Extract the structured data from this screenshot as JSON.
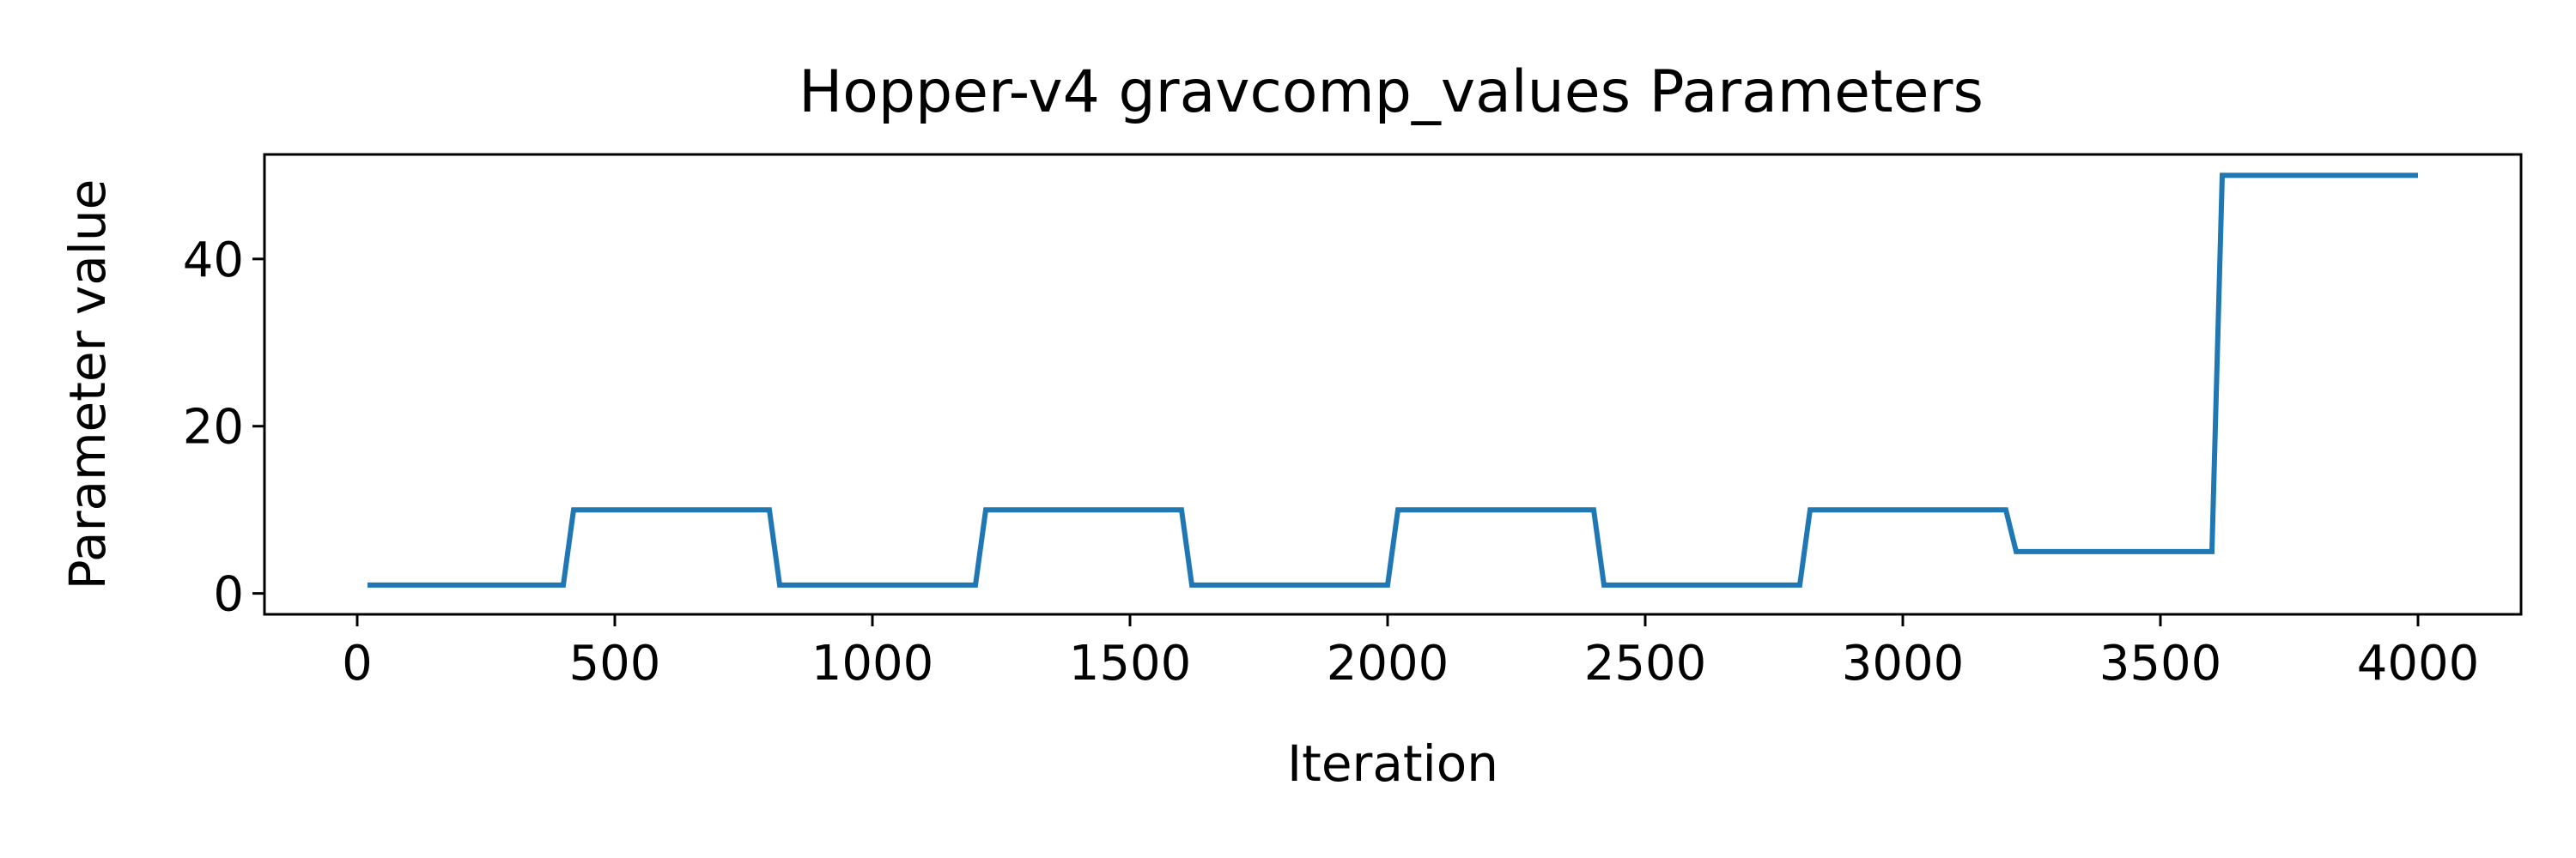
{
  "chart_data": {
    "type": "line",
    "title": "Hopper-v4 gravcomp_values Parameters",
    "xlabel": "Iteration",
    "ylabel": "Parameter value",
    "xlim": [
      -180,
      4200
    ],
    "ylim": [
      -2.5,
      52.5
    ],
    "xticks": [
      0,
      500,
      1000,
      1500,
      2000,
      2500,
      3000,
      3500,
      4000
    ],
    "yticks": [
      0,
      20,
      40
    ],
    "grid": false,
    "series": [
      {
        "color": "#1f77b4",
        "x": [
          20,
          400,
          420,
          800,
          820,
          1200,
          1220,
          1600,
          1620,
          2000,
          2020,
          2400,
          2420,
          2800,
          2820,
          3200,
          3220,
          3600,
          3620,
          4000
        ],
        "y": [
          1,
          1,
          10,
          10,
          1,
          1,
          10,
          10,
          1,
          1,
          10,
          10,
          1,
          1,
          10,
          10,
          5,
          5,
          50,
          50
        ]
      }
    ]
  }
}
